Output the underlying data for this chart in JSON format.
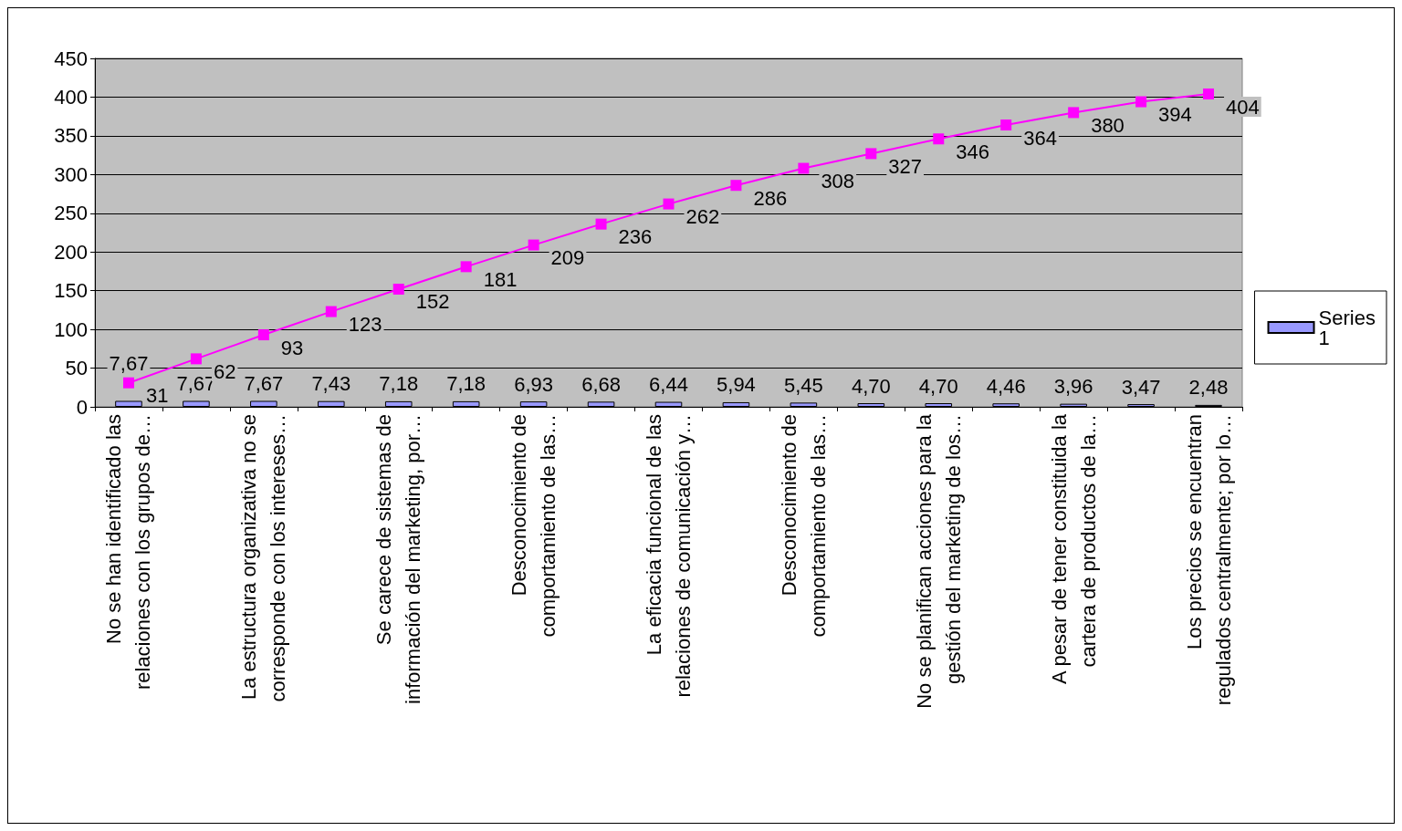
{
  "chart_data": {
    "type": "bar",
    "categories": [
      "No se han identificado las\nrelaciones con los grupos de…",
      null,
      "La estructura organizativa no se\ncorresponde con los intereses…",
      null,
      "Se carece de sistemas de\ninformación del marketing, por…",
      null,
      "Desconocimiento de\ncomportamiento de las…",
      null,
      "La eficacia funcional de las\nrelaciones de comunicación y…",
      null,
      "Desconocimiento de\ncomportamiento de las…",
      null,
      "No se planifican acciones para la\ngestión del marketing de los…",
      null,
      "A pesar de tener constituida la\ncartera de productos de la…",
      null,
      "Los precios se encuentran\nregulados centralmente; por lo…"
    ],
    "series": [
      {
        "name": "Series 1",
        "color": "#9999ff",
        "values": [
          7.67,
          7.67,
          7.67,
          7.43,
          7.18,
          7.18,
          6.93,
          6.68,
          6.44,
          5.94,
          5.45,
          4.7,
          4.7,
          4.46,
          3.96,
          3.47,
          2.48
        ],
        "value_labels": [
          "7,67",
          "7,67",
          "7,67",
          "7,43",
          "7,18",
          "7,18",
          "6,93",
          "6,68",
          "6,44",
          "5,94",
          "5,45",
          "4,70",
          "4,70",
          "4,46",
          "3,96",
          "3,47",
          "2,48"
        ]
      },
      {
        "type": "line",
        "color": "#ff00ff",
        "values": [
          31,
          62,
          93,
          123,
          152,
          181,
          209,
          236,
          262,
          286,
          308,
          327,
          346,
          364,
          380,
          394,
          404
        ],
        "value_labels": [
          "31",
          "62",
          "93",
          "123",
          "152",
          "181",
          "209",
          "236",
          "262",
          "286",
          "308",
          "327",
          "346",
          "364",
          "380",
          "394",
          "404"
        ]
      }
    ],
    "ylim": [
      0,
      450
    ],
    "yticks": [
      0,
      50,
      100,
      150,
      200,
      250,
      300,
      350,
      400,
      450
    ],
    "grid": "y",
    "legend": "right",
    "marker": "square"
  }
}
